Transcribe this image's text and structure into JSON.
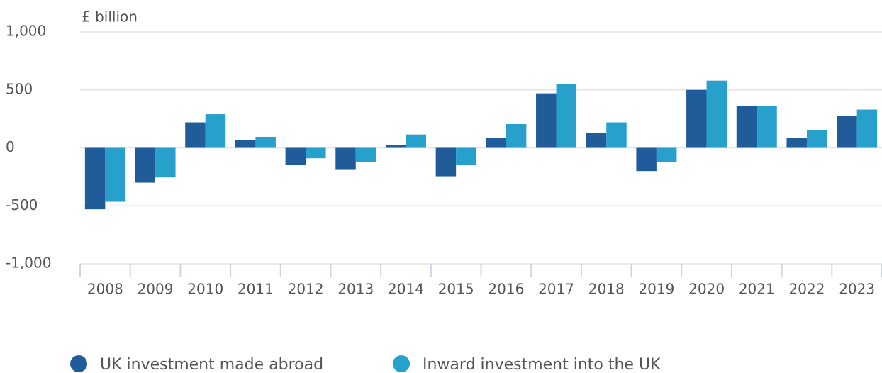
{
  "chart_data": {
    "type": "bar",
    "y_label": "£ billion",
    "categories": [
      "2008",
      "2009",
      "2010",
      "2011",
      "2012",
      "2013",
      "2014",
      "2015",
      "2016",
      "2017",
      "2018",
      "2019",
      "2020",
      "2021",
      "2022",
      "2023"
    ],
    "series": [
      {
        "name": "UK investment made abroad",
        "color": "#1f5c99",
        "values": [
          -530,
          -300,
          220,
          70,
          -145,
          -190,
          25,
          -245,
          85,
          470,
          130,
          -200,
          500,
          360,
          85,
          275
        ]
      },
      {
        "name": "Inward investment into the UK",
        "color": "#27a0cc",
        "values": [
          -465,
          -255,
          290,
          95,
          -90,
          -120,
          115,
          -145,
          205,
          550,
          220,
          -120,
          580,
          360,
          150,
          330
        ]
      }
    ],
    "ylim": [
      -1000,
      1000
    ],
    "yticks": [
      {
        "value": -1000,
        "label": "-1,000"
      },
      -500,
      0,
      500,
      {
        "value": 1000,
        "label": "1,000"
      }
    ],
    "grid": true
  }
}
